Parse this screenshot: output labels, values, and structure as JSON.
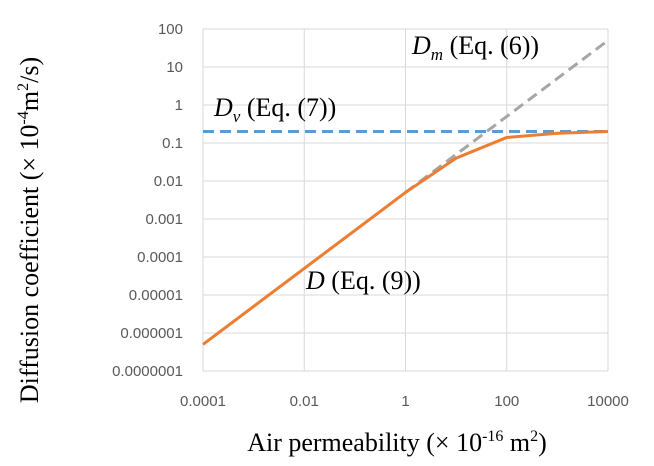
{
  "chart_data": {
    "type": "line",
    "x_scale": "log",
    "y_scale": "log",
    "xlim": [
      0.0001,
      10000
    ],
    "ylim": [
      1e-07,
      100
    ],
    "grid": true,
    "x_ticks": [
      "0.0001",
      "0.01",
      "1",
      "100",
      "10000"
    ],
    "y_ticks": [
      "100",
      "10",
      "1",
      "0.1",
      "0.01",
      "0.001",
      "0.0001",
      "0.00001",
      "0.000001",
      "0.0000001"
    ],
    "xlabel": {
      "main": "Air permeability (× 10",
      "sup": "-16",
      "tail": " m",
      "sup2": "2",
      "end": ")"
    },
    "ylabel": {
      "main": "Diffusion coefficient (× 10",
      "sup": "-4",
      "tail": "m",
      "sup2": "2",
      "end": "/s)"
    },
    "series": [
      {
        "name": "D_m (Eq. (6))",
        "color": "#a6a6a6",
        "dash": true,
        "x": [
          1,
          10,
          100,
          1000,
          10000
        ],
        "y": [
          0.005,
          0.05,
          0.5,
          5,
          50
        ]
      },
      {
        "name": "D_v (Eq. (7))",
        "color": "#5b9bd5",
        "dash": true,
        "x": [
          0.0001,
          10000
        ],
        "y": [
          0.2,
          0.2
        ]
      },
      {
        "name": "D (Eq. (9))",
        "color": "#ed7d31",
        "dash": false,
        "x": [
          0.0001,
          1,
          10,
          100,
          1000,
          10000
        ],
        "y": [
          5e-07,
          0.005,
          0.04,
          0.14,
          0.18,
          0.2
        ]
      }
    ],
    "annotations": [
      {
        "symbol": "D",
        "sub": "m",
        "text": " (Eq. (6))"
      },
      {
        "symbol": "D",
        "sub": "v",
        "text": " (Eq. (7))"
      },
      {
        "symbol": "D",
        "sub": "",
        "text": " (Eq. (9))"
      }
    ]
  }
}
